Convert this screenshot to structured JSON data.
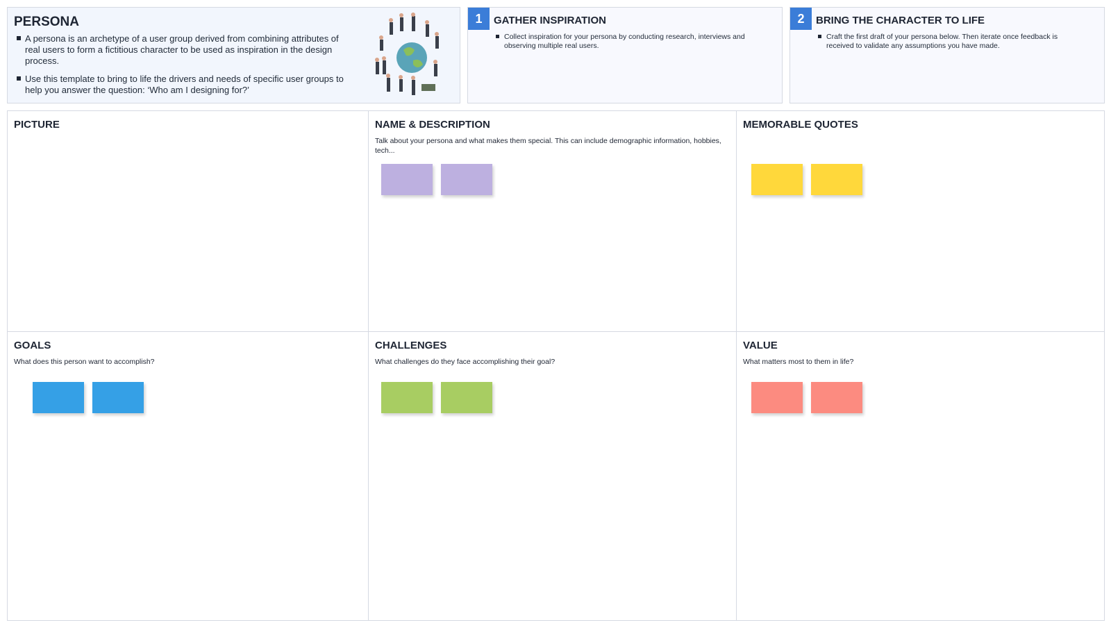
{
  "header": {
    "title": "PERSONA",
    "bullets": [
      "A persona is an archetype of a user group derived from combining attributes of real users to form a fictitious character to be used as inspiration in the design process.",
      "Use this template to bring to life the drivers and needs of specific user groups to help you answer the question: ‘Who am I designing for?’"
    ]
  },
  "steps": [
    {
      "number": "1",
      "title": "GATHER INSPIRATION",
      "text": "Collect inspiration for your persona by conducting research, interviews and observing multiple real users."
    },
    {
      "number": "2",
      "title": "BRING THE CHARACTER TO LIFE",
      "text": "Craft the first draft of your persona below. Then iterate once feedback is received to validate any assumptions you have made."
    }
  ],
  "panels": [
    {
      "title": "PICTURE"
    },
    {
      "title": "NAME & DESCRIPTION",
      "description": "Talk about your persona and what makes them special. This can include demographic information, hobbies, tech..."
    },
    {
      "title": "MEMORABLE QUOTES"
    },
    {
      "title": "GOALS",
      "description": "What does this person want to accomplish?"
    },
    {
      "title": "CHALLENGES",
      "description": "What challenges do they face accomplishing their goal?"
    },
    {
      "title": "VALUE",
      "description": "What matters most to them in life?"
    }
  ]
}
